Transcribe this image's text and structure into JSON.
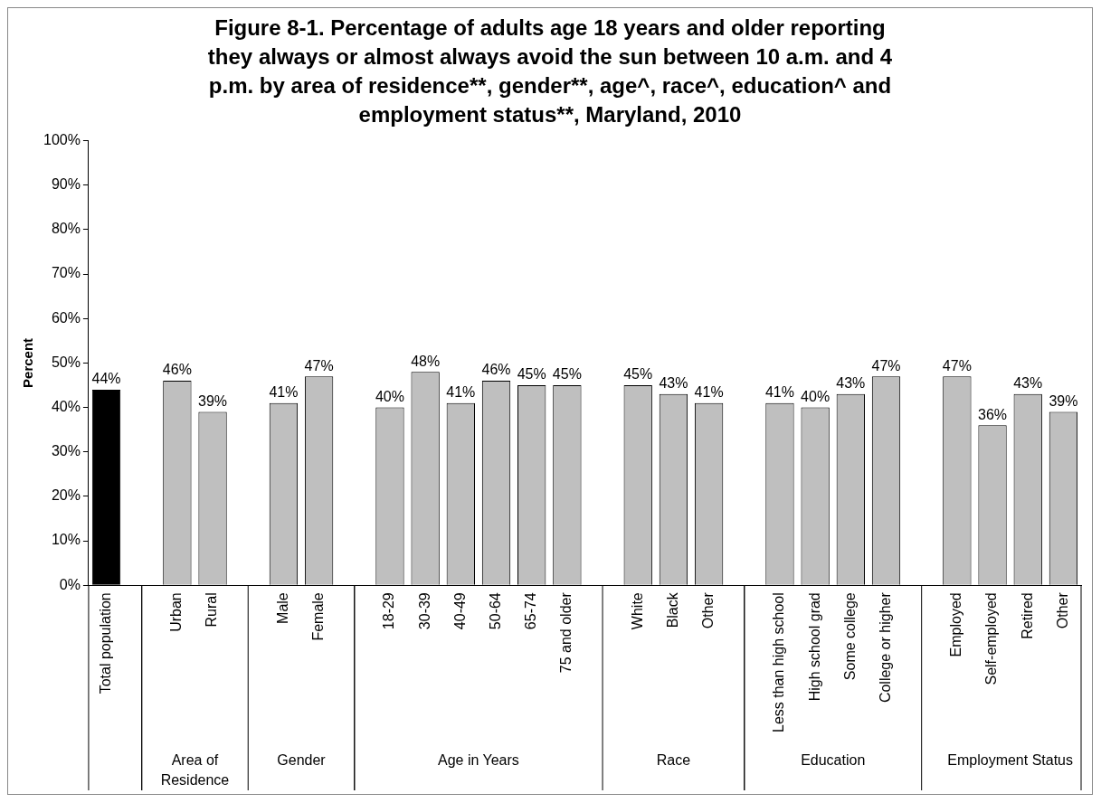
{
  "chart_data": {
    "type": "bar",
    "title": "Figure 8-1.  Percentage of adults age 18 years and older reporting they always or almost always avoid the sun between 10 a.m. and 4 p.m. by area of residence**, gender**, age^, race^, education^ and employment status**, Maryland, 2010",
    "ylabel": "Percent",
    "categories": [
      "Total population",
      null,
      "Urban",
      "Rural",
      null,
      "Male",
      "Female",
      null,
      "18-29",
      "30-39",
      "40-49",
      "50-64",
      "65-74",
      "75 and older",
      null,
      "White",
      "Black",
      "Other",
      null,
      "Less than high school",
      "High school grad",
      "Some college",
      "College or higher",
      null,
      "Employed",
      "Self-employed",
      "Retired",
      "Other"
    ],
    "values": [
      44,
      null,
      46,
      39,
      null,
      41,
      47,
      null,
      40,
      48,
      41,
      46,
      45,
      45,
      null,
      45,
      43,
      41,
      null,
      41,
      40,
      43,
      47,
      null,
      47,
      36,
      43,
      39
    ],
    "value_labels": [
      "44%",
      null,
      "46%",
      "39%",
      null,
      "41%",
      "47%",
      null,
      "40%",
      "48%",
      "41%",
      "46%",
      "45%",
      "45%",
      null,
      "45%",
      "43%",
      "41%",
      null,
      "41%",
      "40%",
      "43%",
      "47%",
      null,
      "47%",
      "36%",
      "43%",
      "39%"
    ],
    "colors": [
      "#000000",
      "#bfbfbf",
      "#bfbfbf",
      "#bfbfbf",
      "#bfbfbf",
      "#bfbfbf",
      "#bfbfbf",
      "#bfbfbf",
      "#bfbfbf",
      "#bfbfbf",
      "#bfbfbf",
      "#bfbfbf",
      "#bfbfbf",
      "#bfbfbf",
      "#bfbfbf",
      "#bfbfbf",
      "#bfbfbf",
      "#bfbfbf",
      "#bfbfbf",
      "#bfbfbf",
      "#bfbfbf",
      "#bfbfbf",
      "#bfbfbf",
      "#bfbfbf",
      "#bfbfbf",
      "#bfbfbf",
      "#bfbfbf",
      "#bfbfbf"
    ],
    "ylim": [
      0,
      100
    ],
    "yticks": [
      {
        "value": 0,
        "label": "0%"
      },
      {
        "value": 10,
        "label": "10%"
      },
      {
        "value": 20,
        "label": "20%"
      },
      {
        "value": 30,
        "label": "30%"
      },
      {
        "value": 40,
        "label": "40%"
      },
      {
        "value": 50,
        "label": "50%"
      },
      {
        "value": 60,
        "label": "60%"
      },
      {
        "value": 70,
        "label": "70%"
      },
      {
        "value": 80,
        "label": "80%"
      },
      {
        "value": 90,
        "label": "90%"
      },
      {
        "value": 100,
        "label": "100%"
      }
    ],
    "grid": false,
    "legend": false,
    "annotations": [
      "Area of Residence",
      "Gender",
      "Age in Years",
      "Race",
      "Education",
      "Employment Status"
    ]
  }
}
